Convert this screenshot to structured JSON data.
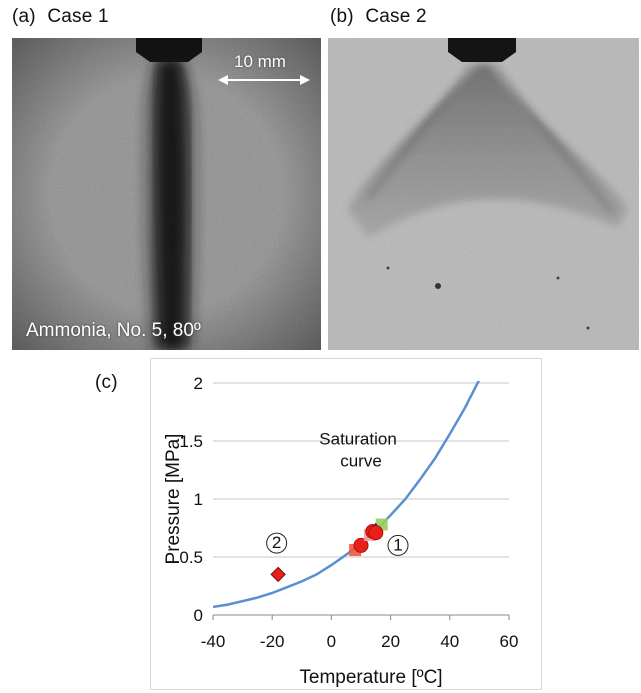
{
  "panels": {
    "a": {
      "label": "(a)",
      "title": "Case 1",
      "caption": "Ammonia, No. 5, 80º",
      "scale_bar": "10 mm"
    },
    "b": {
      "label": "(b)",
      "title": "Case 2"
    },
    "c": {
      "label": "(c)"
    }
  },
  "colors": {
    "curve": "#5b8fd0",
    "red": "#e8201a",
    "orange_red": "#f05a3c",
    "pink": "#f4a0a0",
    "green": "#9acd5a",
    "navy": "#1f2a7a"
  },
  "chart_data": {
    "type": "scatter",
    "xlabel": "Temperature [ºC]",
    "ylabel": "Pressure [MPa]",
    "xlim": [
      -40,
      60
    ],
    "ylim": [
      0,
      2
    ],
    "x_ticks": [
      "-40",
      "-20",
      "0",
      "20",
      "40",
      "60"
    ],
    "y_ticks": [
      "0",
      "0.5",
      "1",
      "1.5",
      "2"
    ],
    "grid": "horizontal",
    "curve_label_line1": "Saturation",
    "curve_label_line2": "curve",
    "annotation_1": "1",
    "annotation_2": "2",
    "saturation_curve": [
      [
        -40,
        0.07
      ],
      [
        -35,
        0.09
      ],
      [
        -30,
        0.12
      ],
      [
        -25,
        0.15
      ],
      [
        -20,
        0.19
      ],
      [
        -15,
        0.24
      ],
      [
        -10,
        0.29
      ],
      [
        -5,
        0.35
      ],
      [
        0,
        0.43
      ],
      [
        5,
        0.52
      ],
      [
        10,
        0.62
      ],
      [
        15,
        0.73
      ],
      [
        20,
        0.86
      ],
      [
        25,
        1.0
      ],
      [
        30,
        1.17
      ],
      [
        35,
        1.35
      ],
      [
        40,
        1.56
      ],
      [
        45,
        1.78
      ],
      [
        50,
        2.03
      ]
    ],
    "points": [
      {
        "x": 8,
        "y": 0.56,
        "shape": "square",
        "color": "orange_red"
      },
      {
        "x": 10,
        "y": 0.6,
        "shape": "circle",
        "color": "red"
      },
      {
        "x": 13,
        "y": 0.69,
        "shape": "square",
        "color": "pink"
      },
      {
        "x": 14,
        "y": 0.72,
        "shape": "circle",
        "color": "red"
      },
      {
        "x": 17,
        "y": 0.78,
        "shape": "square",
        "color": "green"
      },
      {
        "x": 15,
        "y": 0.73,
        "shape": "triangle",
        "color": "navy"
      },
      {
        "x": 15,
        "y": 0.71,
        "shape": "circle",
        "color": "red"
      },
      {
        "x": -18,
        "y": 0.35,
        "shape": "diamond",
        "color": "red"
      }
    ]
  }
}
